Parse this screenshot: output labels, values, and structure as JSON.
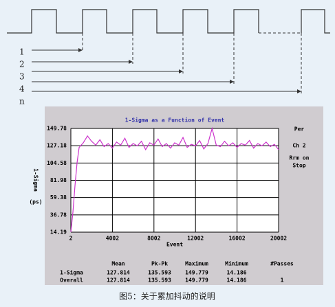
{
  "diagram": {
    "labels": [
      "1",
      "2",
      "3",
      "4",
      "n"
    ]
  },
  "chart_data": {
    "type": "line",
    "title": "1-Sigma as a Function of Event",
    "y_label": "1-Sigma",
    "y_unit": "(ps)",
    "x_label": "Event",
    "side_notes": [
      "Per",
      "Ch 2",
      "Rrm on",
      "Stop"
    ],
    "color": "#cc33cc",
    "grid": true,
    "xlim": [
      2,
      20002
    ],
    "xticks": [
      2,
      4002,
      8002,
      12002,
      16002,
      20002
    ],
    "ylim": [
      14.19,
      149.78
    ],
    "yticks": [
      14.19,
      36.78,
      59.38,
      81.98,
      104.58,
      127.18,
      149.78
    ],
    "x": [
      2,
      200,
      400,
      600,
      800,
      1000,
      1200,
      1600,
      2000,
      2400,
      2800,
      3200,
      3600,
      4000,
      4400,
      4800,
      5200,
      5600,
      6000,
      6400,
      6800,
      7200,
      7600,
      8000,
      8400,
      8800,
      9200,
      9600,
      10000,
      10400,
      10800,
      11200,
      11600,
      12000,
      12400,
      12800,
      13200,
      13600,
      14000,
      14400,
      14800,
      15200,
      15600,
      16000,
      16400,
      16800,
      17200,
      17600,
      18000,
      18400,
      18800,
      19200,
      19600,
      20000
    ],
    "values": [
      14.19,
      40,
      75,
      105,
      125,
      128,
      131,
      140,
      133,
      128,
      135,
      126,
      130,
      124,
      132,
      128,
      137,
      125,
      130,
      127,
      133,
      122,
      131,
      128,
      136,
      126,
      130,
      124,
      131,
      128,
      138,
      125,
      129,
      127,
      134,
      123,
      130,
      149.78,
      128,
      126,
      133,
      127,
      131,
      125,
      130,
      128,
      134,
      124,
      130,
      127,
      132,
      126,
      129,
      122
    ]
  },
  "stats_table": {
    "columns": [
      "Mean",
      "Pk-Pk",
      "Maximum",
      "Minimum",
      "#Passes"
    ],
    "rows": [
      [
        "1-Sigma",
        "127.814",
        "135.593",
        "149.779",
        "14.186"
      ],
      [
        "Overall",
        "127.814",
        "135.593",
        "149.779",
        "14.186",
        "1"
      ]
    ]
  },
  "caption": "图5：关于累加抖动的说明"
}
